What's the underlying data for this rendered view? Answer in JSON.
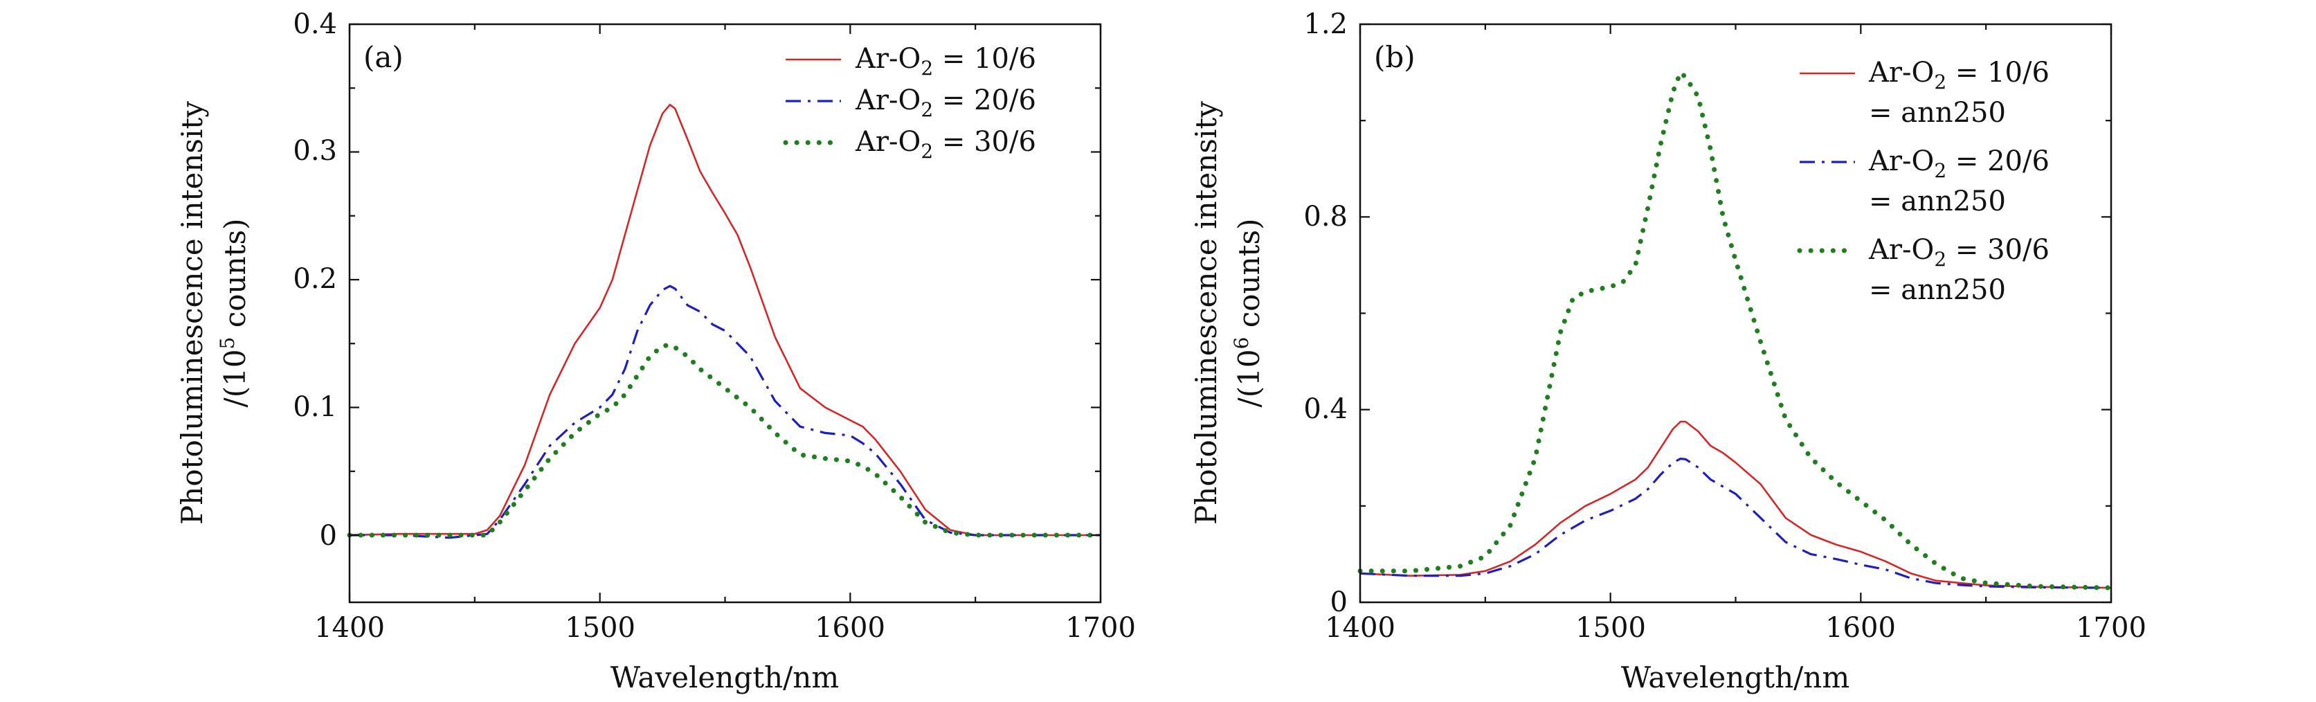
{
  "figure": {
    "panels": [
      {
        "tag": "(a)",
        "xlabel": "Wavelength/nm",
        "ylabel_line1": "Photoluminescence intensity",
        "ylabel_line2_prefix": "/(10",
        "ylabel_line2_exp": "5",
        "ylabel_line2_suffix": " counts)",
        "xticks": [
          "1400",
          "1500",
          "1600",
          "1700"
        ],
        "yticks": [
          "0",
          "0.1",
          "0.2",
          "0.3",
          "0.4"
        ],
        "legend": [
          {
            "pre": "Ar-O",
            "sub": "2",
            "post": " = 10/6",
            "line2": ""
          },
          {
            "pre": "Ar-O",
            "sub": "2",
            "post": " = 20/6",
            "line2": ""
          },
          {
            "pre": "Ar-O",
            "sub": "2",
            "post": " = 30/6",
            "line2": ""
          }
        ]
      },
      {
        "tag": "(b)",
        "xlabel": "Wavelength/nm",
        "ylabel_line1": "Photoluminescence intensity",
        "ylabel_line2_prefix": "/(10",
        "ylabel_line2_exp": "6",
        "ylabel_line2_suffix": " counts)",
        "xticks": [
          "1400",
          "1500",
          "1600",
          "1700"
        ],
        "yticks": [
          "0",
          "0.4",
          "0.8",
          "1.2"
        ],
        "legend": [
          {
            "pre": "Ar-O",
            "sub": "2",
            "post": " = 10/6",
            "line2": "= ann250"
          },
          {
            "pre": "Ar-O",
            "sub": "2",
            "post": " = 20/6",
            "line2": "= ann250"
          },
          {
            "pre": "Ar-O",
            "sub": "2",
            "post": " = 30/6",
            "line2": "= ann250"
          }
        ]
      }
    ]
  },
  "chart_data": [
    {
      "type": "line",
      "title": "",
      "xlabel": "Wavelength/nm",
      "ylabel": "Photoluminescence intensity /(10^5 counts)",
      "xlim": [
        1400,
        1700
      ],
      "ylim": [
        0,
        0.4
      ],
      "grid": false,
      "legend_position": "top-right",
      "series": [
        {
          "name": "Ar-O2 = 10/6",
          "color": "#d62728",
          "style": "solid",
          "x": [
            1400,
            1420,
            1440,
            1450,
            1455,
            1460,
            1470,
            1480,
            1490,
            1500,
            1505,
            1510,
            1515,
            1520,
            1525,
            1528,
            1530,
            1535,
            1540,
            1545,
            1550,
            1555,
            1560,
            1570,
            1580,
            1590,
            1600,
            1605,
            1610,
            1620,
            1630,
            1640,
            1650,
            1670,
            1700
          ],
          "y": [
            0.0,
            0.001,
            0.001,
            0.001,
            0.004,
            0.015,
            0.055,
            0.11,
            0.15,
            0.178,
            0.2,
            0.235,
            0.27,
            0.305,
            0.33,
            0.337,
            0.334,
            0.31,
            0.285,
            0.268,
            0.252,
            0.235,
            0.21,
            0.155,
            0.115,
            0.1,
            0.09,
            0.085,
            0.075,
            0.05,
            0.02,
            0.004,
            0.0,
            0.0,
            0.0
          ]
        },
        {
          "name": "Ar-O2 = 20/6",
          "color": "#1f1fbf",
          "style": "dashdot",
          "x": [
            1400,
            1420,
            1440,
            1455,
            1460,
            1470,
            1480,
            1490,
            1500,
            1505,
            1510,
            1515,
            1520,
            1525,
            1528,
            1530,
            1535,
            1540,
            1545,
            1550,
            1560,
            1570,
            1580,
            1590,
            1600,
            1605,
            1610,
            1620,
            1630,
            1640,
            1650,
            1670,
            1700
          ],
          "y": [
            0.0,
            0.0,
            -0.002,
            0.001,
            0.012,
            0.04,
            0.07,
            0.088,
            0.1,
            0.11,
            0.13,
            0.16,
            0.18,
            0.192,
            0.195,
            0.193,
            0.18,
            0.175,
            0.165,
            0.16,
            0.14,
            0.105,
            0.085,
            0.08,
            0.078,
            0.072,
            0.064,
            0.04,
            0.012,
            0.002,
            0.0,
            0.0,
            0.0
          ]
        },
        {
          "name": "Ar-O2 = 30/6",
          "color": "#1f7f1f",
          "style": "dotted",
          "x": [
            1400,
            1420,
            1440,
            1455,
            1460,
            1470,
            1480,
            1490,
            1500,
            1505,
            1510,
            1515,
            1520,
            1525,
            1528,
            1530,
            1535,
            1540,
            1550,
            1560,
            1570,
            1580,
            1590,
            1600,
            1605,
            1610,
            1620,
            1630,
            1640,
            1650,
            1670,
            1700
          ],
          "y": [
            0.0,
            0.0,
            0.0,
            0.0,
            0.01,
            0.035,
            0.06,
            0.08,
            0.095,
            0.1,
            0.11,
            0.125,
            0.14,
            0.148,
            0.149,
            0.147,
            0.14,
            0.13,
            0.115,
            0.1,
            0.08,
            0.063,
            0.06,
            0.058,
            0.054,
            0.048,
            0.03,
            0.01,
            0.002,
            0.0,
            0.0,
            0.0
          ]
        }
      ]
    },
    {
      "type": "line",
      "title": "",
      "xlabel": "Wavelength/nm",
      "ylabel": "Photoluminescence intensity /(10^6 counts)",
      "xlim": [
        1400,
        1700
      ],
      "ylim": [
        0,
        1.2
      ],
      "grid": false,
      "legend_position": "top-right",
      "series": [
        {
          "name": "Ar-O2 = 10/6 = ann250",
          "color": "#d62728",
          "style": "solid",
          "x": [
            1400,
            1420,
            1440,
            1450,
            1460,
            1470,
            1480,
            1490,
            1500,
            1510,
            1515,
            1520,
            1525,
            1528,
            1530,
            1535,
            1540,
            1545,
            1550,
            1560,
            1570,
            1580,
            1590,
            1600,
            1610,
            1620,
            1630,
            1640,
            1650,
            1670,
            1700
          ],
          "y": [
            0.06,
            0.055,
            0.057,
            0.065,
            0.085,
            0.12,
            0.165,
            0.2,
            0.225,
            0.255,
            0.28,
            0.32,
            0.36,
            0.375,
            0.375,
            0.355,
            0.325,
            0.31,
            0.29,
            0.245,
            0.175,
            0.14,
            0.12,
            0.105,
            0.085,
            0.06,
            0.045,
            0.04,
            0.035,
            0.032,
            0.03
          ]
        },
        {
          "name": "Ar-O2 = 20/6 = ann250",
          "color": "#1f1fbf",
          "style": "dashdot",
          "x": [
            1400,
            1420,
            1440,
            1450,
            1460,
            1470,
            1480,
            1490,
            1500,
            1510,
            1515,
            1520,
            1525,
            1528,
            1530,
            1535,
            1540,
            1545,
            1550,
            1560,
            1570,
            1580,
            1590,
            1600,
            1610,
            1620,
            1630,
            1640,
            1650,
            1670,
            1700
          ],
          "y": [
            0.06,
            0.055,
            0.055,
            0.06,
            0.075,
            0.1,
            0.14,
            0.17,
            0.19,
            0.215,
            0.235,
            0.265,
            0.29,
            0.298,
            0.297,
            0.28,
            0.255,
            0.24,
            0.225,
            0.175,
            0.125,
            0.1,
            0.09,
            0.078,
            0.068,
            0.05,
            0.04,
            0.036,
            0.033,
            0.031,
            0.03
          ]
        },
        {
          "name": "Ar-O2 = 30/6 = ann250",
          "color": "#1f7f1f",
          "style": "dotted",
          "x": [
            1400,
            1420,
            1440,
            1450,
            1460,
            1470,
            1475,
            1480,
            1485,
            1490,
            1500,
            1505,
            1510,
            1515,
            1520,
            1525,
            1528,
            1530,
            1535,
            1540,
            1545,
            1550,
            1560,
            1570,
            1580,
            1590,
            1600,
            1610,
            1620,
            1630,
            1640,
            1650,
            1670,
            1700
          ],
          "y": [
            0.065,
            0.065,
            0.075,
            0.095,
            0.16,
            0.3,
            0.43,
            0.56,
            0.63,
            0.645,
            0.655,
            0.665,
            0.7,
            0.82,
            0.95,
            1.06,
            1.1,
            1.09,
            1.05,
            0.94,
            0.8,
            0.71,
            0.54,
            0.38,
            0.3,
            0.25,
            0.21,
            0.17,
            0.12,
            0.08,
            0.05,
            0.04,
            0.033,
            0.03
          ]
        }
      ]
    }
  ]
}
